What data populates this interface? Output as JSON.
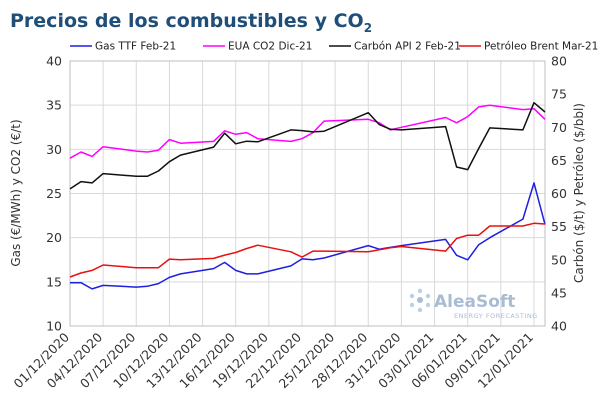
{
  "title_main": "Precios de los combustibles y CO",
  "title_sub": "2",
  "watermark": {
    "brand": "AleaSoft",
    "tagline": "ENERGY FORECASTING"
  },
  "chart_data": {
    "type": "line",
    "xlabel": "",
    "ylabel_left": "Gas (€/MWh) y CO2 (€/t)",
    "ylabel_right": "Carbón ($/t) y Petróleo ($/bbl)",
    "ylim_left": [
      10,
      40
    ],
    "ylim_right": [
      40,
      80
    ],
    "yticks_left": [
      10,
      15,
      20,
      25,
      30,
      35,
      40
    ],
    "yticks_right": [
      40,
      45,
      50,
      55,
      60,
      65,
      70,
      75,
      80
    ],
    "grid": true,
    "legend_position": "top",
    "x": [
      "01/12/2020",
      "02/12/2020",
      "03/12/2020",
      "04/12/2020",
      "07/12/2020",
      "08/12/2020",
      "09/12/2020",
      "10/12/2020",
      "11/12/2020",
      "14/12/2020",
      "15/12/2020",
      "16/12/2020",
      "17/12/2020",
      "18/12/2020",
      "21/12/2020",
      "22/12/2020",
      "23/12/2020",
      "24/12/2020",
      "28/12/2020",
      "29/12/2020",
      "30/12/2020",
      "31/12/2020",
      "04/01/2021",
      "05/01/2021",
      "06/01/2021",
      "07/01/2021",
      "08/01/2021",
      "11/01/2021",
      "12/01/2021",
      "13/01/2021"
    ],
    "x_tick_labels": [
      "01/12/2020",
      "04/12/2020",
      "07/12/2020",
      "10/12/2020",
      "13/12/2020",
      "16/12/2020",
      "19/12/2020",
      "22/12/2020",
      "25/12/2020",
      "28/12/2020",
      "31/12/2020",
      "03/01/2021",
      "06/01/2021",
      "09/01/2021",
      "12/01/2021"
    ],
    "x_tick_dates": [
      "2020-12-01",
      "2020-12-04",
      "2020-12-07",
      "2020-12-10",
      "2020-12-13",
      "2020-12-16",
      "2020-12-19",
      "2020-12-22",
      "2020-12-25",
      "2020-12-28",
      "2020-12-31",
      "2021-01-03",
      "2021-01-06",
      "2021-01-09",
      "2021-01-12"
    ],
    "x_dates": [
      "2020-12-01",
      "2020-12-02",
      "2020-12-03",
      "2020-12-04",
      "2020-12-07",
      "2020-12-08",
      "2020-12-09",
      "2020-12-10",
      "2020-12-11",
      "2020-12-14",
      "2020-12-15",
      "2020-12-16",
      "2020-12-17",
      "2020-12-18",
      "2020-12-21",
      "2020-12-22",
      "2020-12-23",
      "2020-12-24",
      "2020-12-28",
      "2020-12-29",
      "2020-12-30",
      "2020-12-31",
      "2021-01-04",
      "2021-01-05",
      "2021-01-06",
      "2021-01-07",
      "2021-01-08",
      "2021-01-11",
      "2021-01-12",
      "2021-01-13"
    ],
    "series": [
      {
        "name": "Gas TTF Feb-21",
        "axis": "left",
        "color": "#1f1fe0",
        "values": [
          14.9,
          14.9,
          14.2,
          14.6,
          14.4,
          14.5,
          14.8,
          15.5,
          15.9,
          16.5,
          17.2,
          16.3,
          15.9,
          15.9,
          16.8,
          17.6,
          17.5,
          17.7,
          19.1,
          18.7,
          18.9,
          19.1,
          19.8,
          18.0,
          17.5,
          19.2,
          20.0,
          22.1,
          26.2,
          21.5
        ]
      },
      {
        "name": "EUA CO2 Dic-21",
        "axis": "left",
        "color": "#ff00ff",
        "values": [
          29.0,
          29.7,
          29.2,
          30.3,
          29.8,
          29.7,
          29.9,
          31.1,
          30.7,
          30.9,
          32.1,
          31.7,
          31.9,
          31.2,
          30.9,
          31.2,
          31.9,
          33.2,
          33.4,
          33.0,
          32.2,
          32.5,
          33.6,
          33.0,
          33.7,
          34.8,
          35.0,
          34.5,
          34.6,
          33.4
        ]
      },
      {
        "name": "Carbón API 2 Feb-21",
        "axis": "right",
        "color": "#111111",
        "values": [
          60.7,
          61.8,
          61.6,
          63.0,
          62.6,
          62.6,
          63.4,
          64.8,
          65.8,
          67.0,
          69.1,
          67.5,
          67.9,
          67.8,
          69.6,
          69.5,
          69.3,
          69.4,
          72.2,
          70.4,
          69.7,
          69.6,
          70.1,
          64.0,
          63.6,
          66.8,
          69.9,
          69.6,
          73.7,
          72.3
        ]
      },
      {
        "name": "Petróleo Brent Mar-21",
        "axis": "right",
        "color": "#e81010",
        "values": [
          47.4,
          48.0,
          48.4,
          49.2,
          48.8,
          48.8,
          48.8,
          50.1,
          50.0,
          50.2,
          50.7,
          51.1,
          51.7,
          52.2,
          51.2,
          50.4,
          51.3,
          51.3,
          51.2,
          51.5,
          51.8,
          52.0,
          51.3,
          53.2,
          53.7,
          53.7,
          55.1,
          55.1,
          55.5,
          55.4
        ]
      }
    ]
  }
}
